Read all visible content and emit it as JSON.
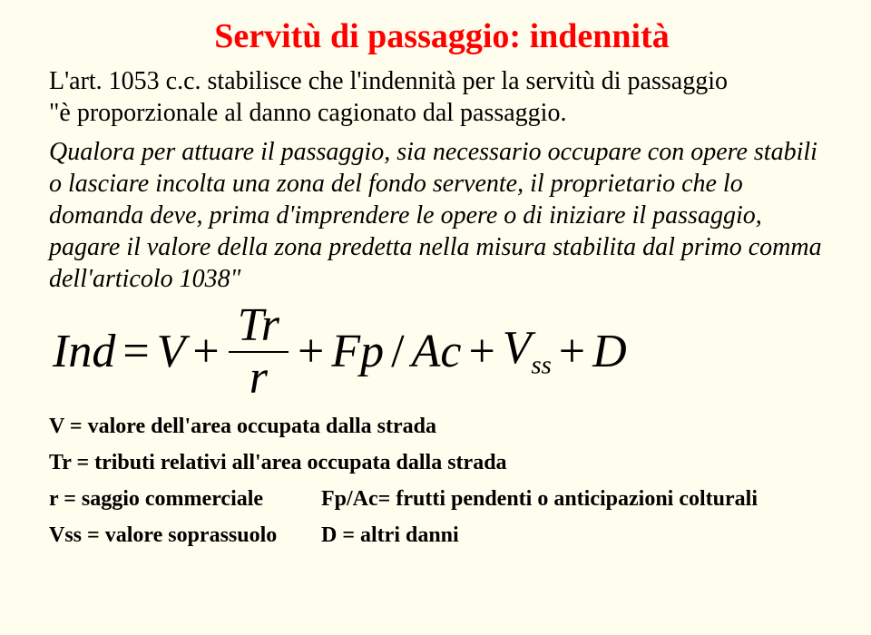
{
  "colors": {
    "background": "#fffded",
    "title": "#ff0000",
    "text": "#000000"
  },
  "title": "Servitù di passaggio: indennità",
  "p1_a": "L'art. 1053 c.c. stabilisce che l'indennità per la servitù di passaggio",
  "p1_b": "\"è proporzionale al danno cagionato dal passaggio.",
  "p2": "Qualora per attuare il passaggio, sia necessario occupare con opere stabili o lasciare incolta una zona del fondo servente, il proprietario che lo domanda deve, prima d'imprendere le opere o di iniziare il passaggio, pagare il valore della zona predetta nella misura stabilita dal primo comma dell'articolo 1038\"",
  "formula": {
    "lhs": "Ind",
    "eq": "=",
    "V": "V",
    "plus": "+",
    "Tr": "Tr",
    "r": "r",
    "Fp": "Fp",
    "slash": "/",
    "Ac": "Ac",
    "Vss_base": "V",
    "Vss_sub": "ss",
    "D": "D"
  },
  "legend": {
    "V": "V = valore dell'area occupata dalla strada",
    "Tr": "Tr = tributi relativi all'area occupata dalla strada",
    "r": "r = saggio commerciale",
    "FpAc": "Fp/Ac= frutti pendenti o anticipazioni colturali",
    "Vss": "Vss = valore soprassuolo",
    "D": "D = altri danni"
  }
}
